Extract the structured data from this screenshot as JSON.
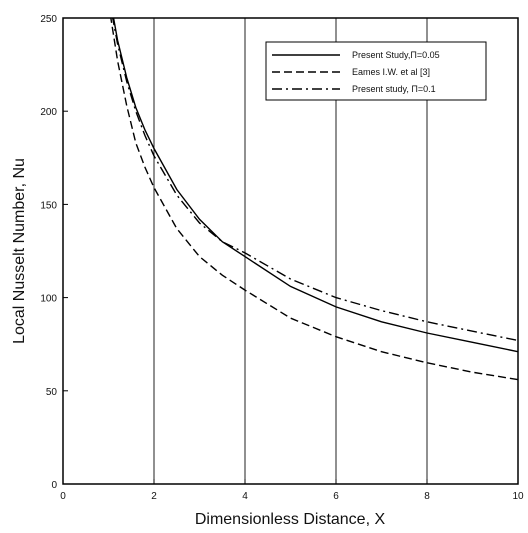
{
  "chart_data": {
    "type": "line",
    "title": "",
    "xlabel": "Dimensionless Distance,  X",
    "ylabel": "Local Nusselt Number,  Nu",
    "xlim": [
      0,
      10
    ],
    "ylim": [
      0,
      250
    ],
    "xticks": [
      "0",
      "2",
      "4",
      "6",
      "8",
      "10"
    ],
    "yticks": [
      "0",
      "50",
      "100",
      "150",
      "200",
      "250"
    ],
    "grid": "vertical lines at x = 2, 4, 6, 8",
    "legend_position": "top-right",
    "series": [
      {
        "name": "Present Study,Π=0.05",
        "style": "solid",
        "color": "#000000",
        "x": [
          1.0,
          1.2,
          1.4,
          1.6,
          1.8,
          2.0,
          2.5,
          3.0,
          3.5,
          4.0,
          5.0,
          6.0,
          7.0,
          8.0,
          9.0,
          10.0
        ],
        "y": [
          265,
          238,
          218,
          202,
          190,
          180,
          158,
          142,
          130,
          122,
          106,
          95,
          87,
          81,
          76,
          71
        ]
      },
      {
        "name": "Eames I.W. et al [3]",
        "style": "dashed",
        "color": "#000000",
        "x": [
          1.0,
          1.2,
          1.4,
          1.6,
          1.8,
          2.0,
          2.5,
          3.0,
          3.5,
          4.0,
          5.0,
          6.0,
          7.0,
          8.0,
          9.0,
          10.0
        ],
        "y": [
          258,
          227,
          203,
          183,
          170,
          159,
          137,
          122,
          112,
          104,
          89,
          79,
          71,
          65,
          60,
          56
        ]
      },
      {
        "name": "Present study,  Π=0.1",
        "style": "dashdot",
        "color": "#000000",
        "x": [
          1.0,
          1.2,
          1.4,
          1.6,
          1.8,
          2.0,
          2.5,
          3.0,
          3.5,
          4.0,
          5.0,
          6.0,
          7.0,
          8.0,
          9.0,
          10.0
        ],
        "y": [
          262,
          236,
          216,
          200,
          187,
          176,
          155,
          140,
          130,
          124,
          110,
          100,
          93,
          87,
          82,
          77
        ]
      }
    ]
  }
}
